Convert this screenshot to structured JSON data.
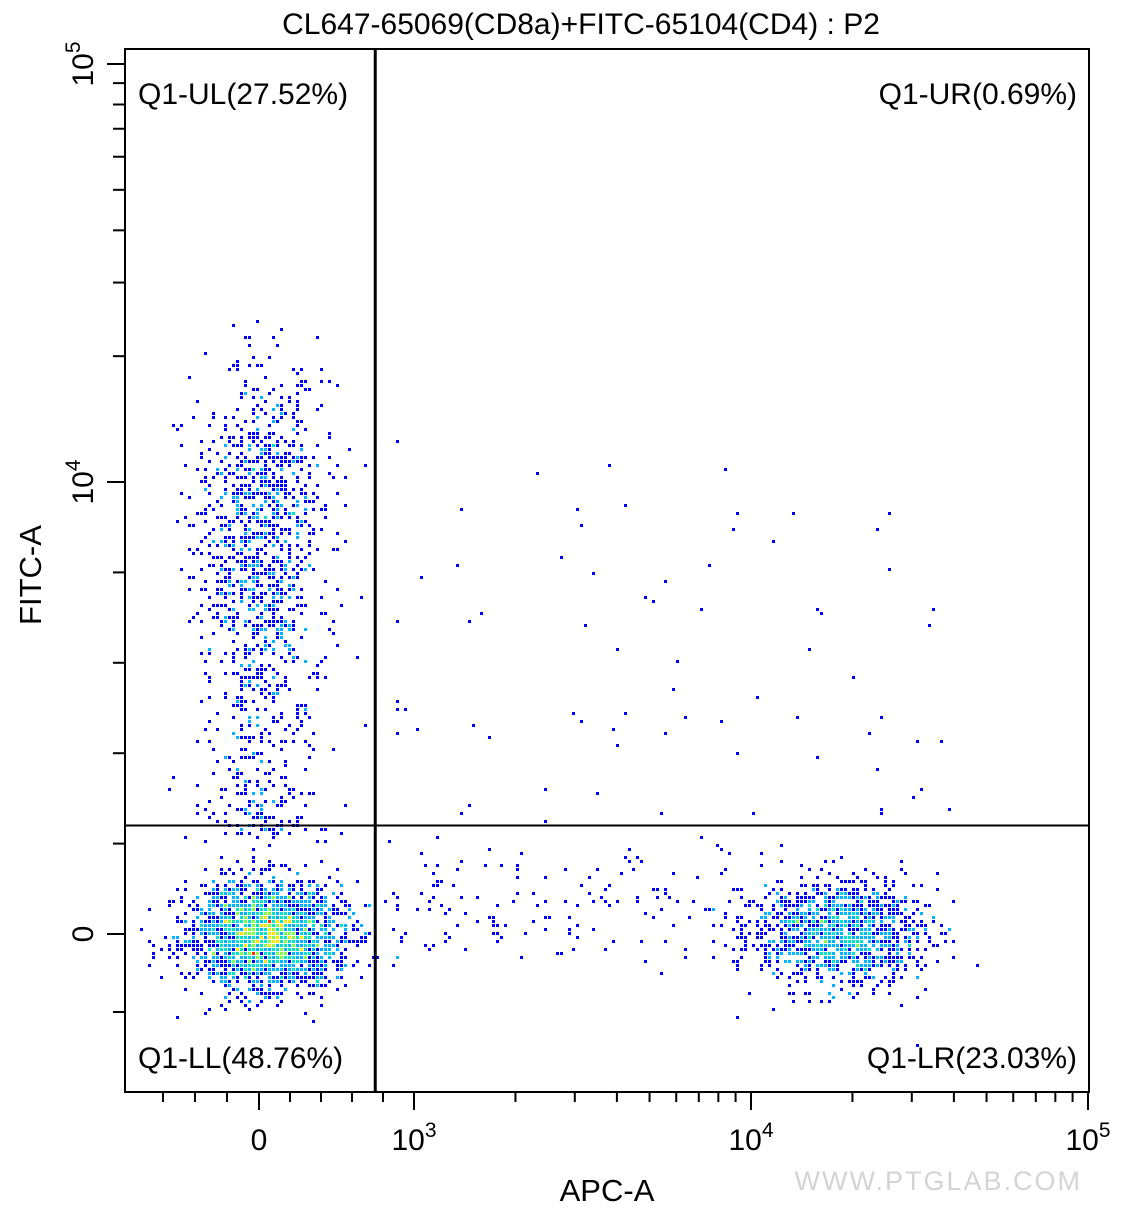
{
  "chart_data": {
    "type": "scatter",
    "title": "CL647-65069(CD8a)+FITC-65104(CD4) : P2",
    "xlabel": "APC-A",
    "ylabel": "FITC-A",
    "x_scale": "biexponential",
    "y_scale": "biexponential",
    "x_ticks": [
      {
        "value": 0,
        "base": "0",
        "exp": ""
      },
      {
        "value": 1000,
        "base": "10",
        "exp": "3"
      },
      {
        "value": 10000,
        "base": "10",
        "exp": "4"
      },
      {
        "value": 100000,
        "base": "10",
        "exp": "5"
      }
    ],
    "y_ticks": [
      {
        "value": 0,
        "base": "0",
        "exp": ""
      },
      {
        "value": 10000,
        "base": "10",
        "exp": "4"
      },
      {
        "value": 100000,
        "base": "10",
        "exp": "5"
      }
    ],
    "xlim": [
      -400,
      100000
    ],
    "ylim": [
      -2000,
      100000
    ],
    "gate": {
      "x": 750,
      "y": 2400
    },
    "quadrants": [
      {
        "label": "Q1-UL(27.52%)",
        "position": "top-left",
        "percent": 27.52
      },
      {
        "label": "Q1-UR(0.69%)",
        "position": "top-right",
        "percent": 0.69
      },
      {
        "label": "Q1-LL(48.76%)",
        "position": "bottom-left",
        "percent": 48.76
      },
      {
        "label": "Q1-LR(23.03%)",
        "position": "bottom-right",
        "percent": 23.03
      }
    ],
    "populations": [
      {
        "name": "",
        "x_center": 40,
        "y_center": 30,
        "x_spread": 120,
        "y_spread": 320,
        "share": 0.4876
      },
      {
        "name": "",
        "x_center": 0,
        "y_center": 8500,
        "x_spread": 90,
        "y_spread": 3500,
        "share": 0.2752
      },
      {
        "name": "",
        "x_center": 18000,
        "y_center": 40,
        "x_spread": 5500,
        "y_spread": 300,
        "share": 0.2303
      },
      {
        "name": "",
        "x_center": 5000,
        "y_center": 6000,
        "x_spread": 4000,
        "y_spread": 3000,
        "share": 0.0069
      }
    ],
    "density_colors": [
      "#0000ff",
      "#00b4ff",
      "#00e5c8",
      "#7fff3f",
      "#ffe600",
      "#ff2a00"
    ],
    "grid": false,
    "legend": "none"
  },
  "watermark": "WWW.PTGLAB.COM"
}
